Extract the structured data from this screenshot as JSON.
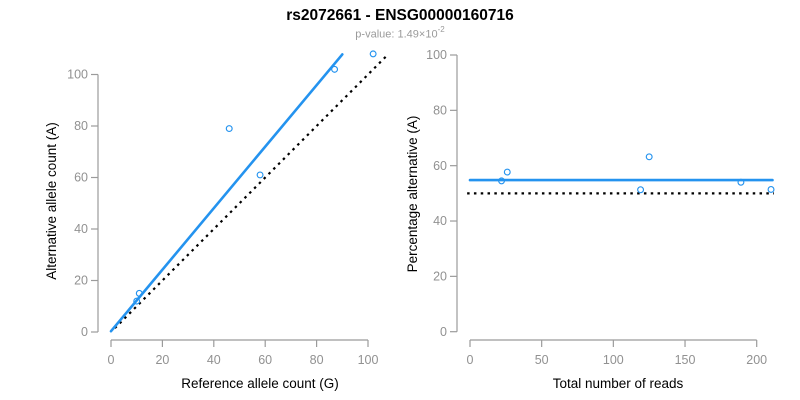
{
  "header": {
    "title": "rs2072661 - ENSG00000160716",
    "subtitle_prefix": "p-value: 1.49×10",
    "subtitle_exponent": "-2"
  },
  "colors": {
    "accent_blue": "#2493ef",
    "reference_black": "#000000",
    "axis_gray": "#9b9b9b",
    "tick_label_gray": "#919191",
    "axis_title_black": "#000000"
  },
  "chart_data": [
    {
      "type": "scatter",
      "title": "",
      "xlabel": "Reference allele count (G)",
      "ylabel": "Alternative allele count (A)",
      "xlim": [
        0,
        100
      ],
      "ylim": [
        0,
        100
      ],
      "xticks": [
        0,
        20,
        40,
        60,
        80,
        100
      ],
      "yticks": [
        0,
        20,
        40,
        60,
        80,
        100
      ],
      "grid": false,
      "legend": false,
      "points": [
        [
          10,
          12
        ],
        [
          11,
          15
        ],
        [
          46,
          79
        ],
        [
          58,
          61
        ],
        [
          87,
          102
        ],
        [
          102,
          108
        ]
      ],
      "fit_line": {
        "name": "fitted-proportion-line",
        "style": "solid",
        "from": [
          0,
          0.3
        ],
        "to": [
          90,
          107.8
        ]
      },
      "reference_line": {
        "name": "identity-line",
        "style": "dotted",
        "from": [
          1.5,
          1.5
        ],
        "to": [
          107,
          107
        ]
      }
    },
    {
      "type": "scatter",
      "title": "",
      "xlabel": "Total number of reads",
      "ylabel": "Percentage alternative (A)",
      "xlim": [
        0,
        200
      ],
      "ylim": [
        0,
        100
      ],
      "xticks": [
        0,
        50,
        100,
        150,
        200
      ],
      "yticks": [
        0,
        20,
        40,
        60,
        80,
        100
      ],
      "grid": false,
      "legend": false,
      "points": [
        [
          22,
          54.5
        ],
        [
          26,
          57.7
        ],
        [
          119,
          51.3
        ],
        [
          125,
          63.2
        ],
        [
          189,
          54.0
        ],
        [
          210,
          51.4
        ]
      ],
      "fit_line": {
        "name": "fitted-percentage-line",
        "style": "solid",
        "from": [
          0,
          54.8
        ],
        "to": [
          211,
          54.8
        ]
      },
      "reference_line": {
        "name": "null-50-percent-line",
        "style": "dotted",
        "from": [
          -2,
          50
        ],
        "to": [
          212,
          50
        ]
      }
    }
  ]
}
